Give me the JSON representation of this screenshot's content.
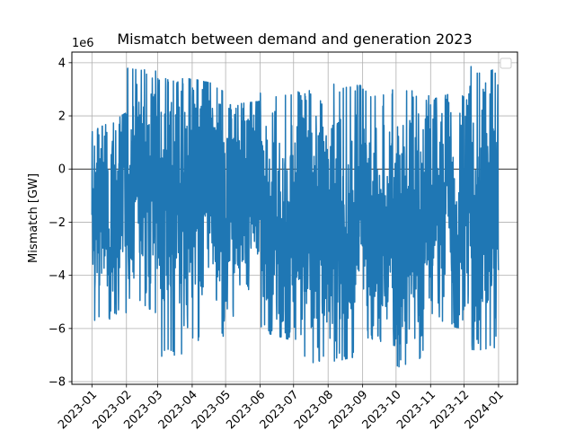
{
  "chart_data": {
    "type": "line",
    "title": "Mismatch between demand and generation 2023",
    "xlabel": "",
    "ylabel": "Mismatch [GW]",
    "y_offset_text": "1e6",
    "x_ticks": [
      "2023-01",
      "2023-02",
      "2023-03",
      "2023-04",
      "2023-05",
      "2023-06",
      "2023-07",
      "2023-08",
      "2023-09",
      "2023-10",
      "2023-11",
      "2023-12",
      "2024-01"
    ],
    "y_ticks": [
      4,
      2,
      0,
      -2,
      -4,
      -6,
      -8
    ],
    "xlim": [
      "2022-12-14",
      "2024-01-18"
    ],
    "ylim": [
      -8.1,
      4.4
    ],
    "y_scale": 1000000,
    "grid": true,
    "zero_line": true,
    "legend": "top-right, empty",
    "series_color": "#1f77b4",
    "series": [
      {
        "x_start": "2023-01-01",
        "x_end": "2024-01-01",
        "monthly_envelope": [
          {
            "month": "2023-01",
            "max": 1.4,
            "min": -5.8
          },
          {
            "month": "2023-02",
            "max": 3.8,
            "min": -4.8
          },
          {
            "month": "2023-03",
            "max": 3.4,
            "min": -7.1
          },
          {
            "month": "2023-04",
            "max": 3.4,
            "min": -6.6
          },
          {
            "month": "2023-05",
            "max": 2.4,
            "min": -5.5
          },
          {
            "month": "2023-06",
            "max": 2.9,
            "min": -6.1
          },
          {
            "month": "2023-07",
            "max": 3.0,
            "min": -7.3
          },
          {
            "month": "2023-08",
            "max": 3.2,
            "min": -7.3
          },
          {
            "month": "2023-09",
            "max": 3.0,
            "min": -6.3
          },
          {
            "month": "2023-10",
            "max": 3.0,
            "min": -7.5
          },
          {
            "month": "2023-11",
            "max": 2.6,
            "min": -5.7
          },
          {
            "month": "2023-12",
            "max": 3.9,
            "min": -6.8
          }
        ]
      }
    ]
  }
}
